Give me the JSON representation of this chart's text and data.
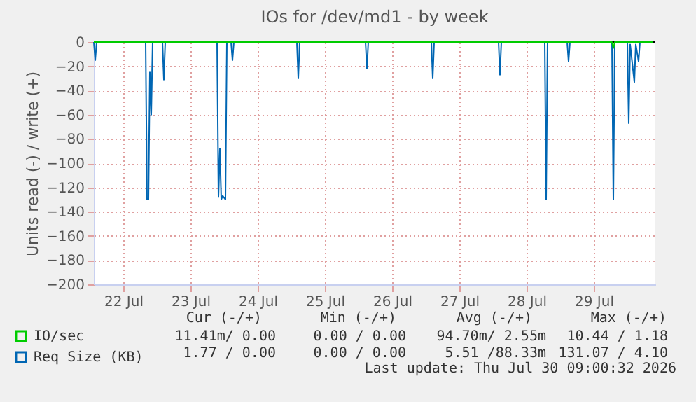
{
  "chart_data": {
    "type": "line",
    "title": "IOs for /dev/md1 - by week",
    "ylabel": "Units read (-) / write (+)",
    "ylim": [
      -200,
      0
    ],
    "yticks": [
      -200,
      -180,
      -160,
      -140,
      -120,
      -100,
      -80,
      -60,
      -40,
      -20,
      0
    ],
    "xlim": [
      "2026-07-22T01:30",
      "2026-07-30T10:00"
    ],
    "xticks": [
      {
        "value": "2026-07-22T12:00",
        "label": "22 Jul"
      },
      {
        "value": "2026-07-23T12:00",
        "label": "23 Jul"
      },
      {
        "value": "2026-07-24T12:00",
        "label": "24 Jul"
      },
      {
        "value": "2026-07-25T12:00",
        "label": "25 Jul"
      },
      {
        "value": "2026-07-26T12:00",
        "label": "26 Jul"
      },
      {
        "value": "2026-07-27T12:00",
        "label": "27 Jul"
      },
      {
        "value": "2026-07-28T12:00",
        "label": "28 Jul"
      },
      {
        "value": "2026-07-29T12:00",
        "label": "29 Jul"
      }
    ],
    "grid": true,
    "legend": "bottom",
    "ref_lines": [
      {
        "axis": "y",
        "value": 0,
        "color": "#000000"
      }
    ],
    "series": [
      {
        "name": "IO/sec",
        "color": "#00cc00",
        "x": [
          "2026-07-22T01:30",
          "2026-07-29T18:30",
          "2026-07-29T19:00",
          "2026-07-29T19:30",
          "2026-07-30T09:00"
        ],
        "values": [
          0,
          0,
          -5,
          0,
          0
        ]
      },
      {
        "name": "Req Size (KB)",
        "color": "#0066b3",
        "x": [
          "2026-07-22T01:30",
          "2026-07-22T02:00",
          "2026-07-22T02:30",
          "2026-07-22T20:00",
          "2026-07-22T20:30",
          "2026-07-22T21:00",
          "2026-07-22T21:30",
          "2026-07-22T22:00",
          "2026-07-22T22:30",
          "2026-07-23T02:00",
          "2026-07-23T02:30",
          "2026-07-23T03:00",
          "2026-07-23T21:30",
          "2026-07-23T22:00",
          "2026-07-23T22:30",
          "2026-07-23T23:00",
          "2026-07-23T23:30",
          "2026-07-24T00:30",
          "2026-07-24T01:00",
          "2026-07-24T02:30",
          "2026-07-24T03:00",
          "2026-07-24T03:30",
          "2026-07-25T02:00",
          "2026-07-25T02:30",
          "2026-07-25T03:00",
          "2026-07-26T02:30",
          "2026-07-26T03:00",
          "2026-07-26T03:30",
          "2026-07-27T02:00",
          "2026-07-27T02:30",
          "2026-07-27T03:00",
          "2026-07-28T02:00",
          "2026-07-28T02:30",
          "2026-07-28T03:00",
          "2026-07-28T18:30",
          "2026-07-28T19:00",
          "2026-07-28T19:30",
          "2026-07-29T02:30",
          "2026-07-29T03:00",
          "2026-07-29T03:30",
          "2026-07-29T18:30",
          "2026-07-29T19:00",
          "2026-07-29T19:30",
          "2026-07-30T00:00",
          "2026-07-30T00:30",
          "2026-07-30T01:00",
          "2026-07-30T02:30",
          "2026-07-30T03:00",
          "2026-07-30T04:00",
          "2026-07-30T04:30",
          "2026-07-30T09:00"
        ],
        "values": [
          0,
          -15,
          0,
          0,
          -130,
          -130,
          -25,
          -60,
          0,
          0,
          -31,
          0,
          0,
          -128,
          -88,
          -130,
          -127,
          -130,
          0,
          0,
          -15,
          0,
          0,
          -30,
          0,
          0,
          -22,
          0,
          0,
          -30,
          0,
          0,
          -27,
          0,
          0,
          -130,
          0,
          0,
          -16,
          0,
          0,
          -130,
          0,
          0,
          -67,
          -2,
          -33,
          -2,
          -16,
          0,
          0
        ]
      }
    ],
    "annotations": [
      "Cur (-/+)",
      "Min (-/+)",
      "Avg (-/+)",
      "Max (-/+)",
      "11.41m/ 0.00",
      "0.00 / 0.00",
      "94.70m/ 2.55m",
      "10.44 / 1.18",
      "1.77 / 0.00",
      "0.00 / 0.00",
      "5.51 /88.33m",
      "131.07 / 4.10",
      "Last update: Thu Jul 30 09:00:32 2026"
    ]
  }
}
